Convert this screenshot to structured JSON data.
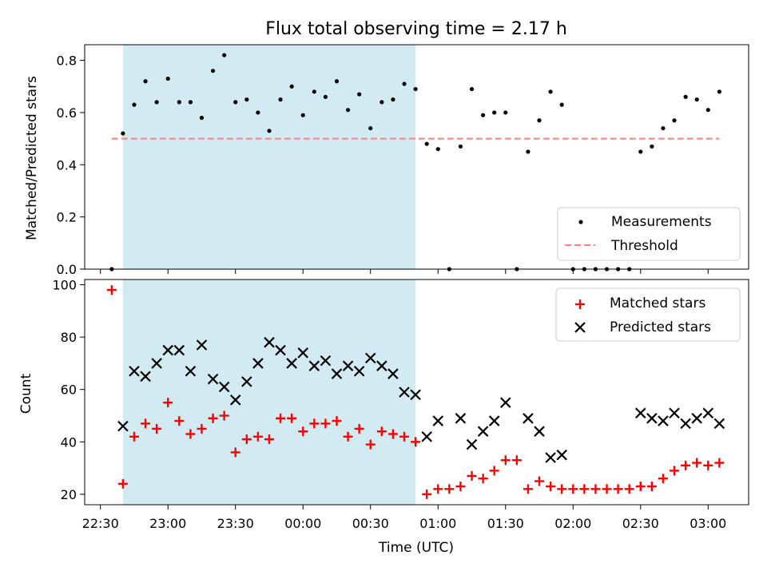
{
  "chart_data": [
    {
      "type": "scatter",
      "title": "Flux total observing time = 2.17 h",
      "xlabel": "",
      "ylabel": "Matched/Predicted stars",
      "ylim": [
        0,
        0.86
      ],
      "yticks": [
        "0.0",
        "0.2",
        "0.4",
        "0.6",
        "0.8"
      ],
      "ytick_values": [
        0,
        0.2,
        0.4,
        0.6,
        0.8
      ],
      "legend_position": "lower-right",
      "shaded_interval": [
        "22:40",
        "00:50"
      ],
      "series": [
        {
          "name": "Measurements",
          "color": "#000000",
          "marker": "dot",
          "x": [
            "22:35",
            "22:40",
            "22:45",
            "22:50",
            "22:55",
            "23:00",
            "23:05",
            "23:10",
            "23:15",
            "23:20",
            "23:25",
            "23:30",
            "23:35",
            "23:40",
            "23:45",
            "23:50",
            "23:55",
            "00:00",
            "00:05",
            "00:10",
            "00:15",
            "00:20",
            "00:25",
            "00:30",
            "00:35",
            "00:40",
            "00:45",
            "00:50",
            "00:55",
            "01:00",
            "01:05",
            "01:10",
            "01:15",
            "01:20",
            "01:25",
            "01:30",
            "01:35",
            "01:40",
            "01:45",
            "01:50",
            "01:55",
            "02:00",
            "02:05",
            "02:10",
            "02:15",
            "02:20",
            "02:25",
            "02:30",
            "02:35",
            "02:40",
            "02:45",
            "02:50",
            "02:55",
            "03:00",
            "03:05"
          ],
          "y": [
            0.0,
            0.52,
            0.63,
            0.72,
            0.64,
            0.73,
            0.64,
            0.64,
            0.58,
            0.76,
            0.82,
            0.64,
            0.65,
            0.6,
            0.53,
            0.65,
            0.7,
            0.59,
            0.68,
            0.66,
            0.72,
            0.61,
            0.67,
            0.54,
            0.64,
            0.65,
            0.71,
            0.69,
            0.48,
            0.46,
            0.0,
            0.47,
            0.69,
            0.59,
            0.6,
            0.6,
            0.0,
            0.45,
            0.57,
            0.68,
            0.63,
            0.0,
            0.0,
            0.0,
            0.0,
            0.0,
            0.0,
            0.45,
            0.47,
            0.54,
            0.57,
            0.66,
            0.65,
            0.61,
            0.68
          ]
        },
        {
          "name": "Threshold",
          "color": "#ff7f7f",
          "style": "dashed",
          "x": [
            "22:35",
            "03:05"
          ],
          "y": [
            0.5,
            0.5
          ]
        }
      ]
    },
    {
      "type": "scatter",
      "title": "",
      "xlabel": "Time (UTC)",
      "ylabel": "Count",
      "ylim": [
        16,
        102
      ],
      "yticks": [
        "20",
        "40",
        "60",
        "80",
        "100"
      ],
      "ytick_values": [
        20,
        40,
        60,
        80,
        100
      ],
      "xlim": [
        "22:23",
        "03:18"
      ],
      "xticks": [
        "22:30",
        "23:00",
        "23:30",
        "00:00",
        "00:30",
        "01:00",
        "01:30",
        "02:00",
        "02:30",
        "03:00"
      ],
      "legend_position": "upper-right",
      "shaded_interval": [
        "22:40",
        "00:50"
      ],
      "series": [
        {
          "name": "Matched stars",
          "color": "#ff0000",
          "marker": "plus",
          "x": [
            "22:35",
            "22:40",
            "22:45",
            "22:50",
            "22:55",
            "23:00",
            "23:05",
            "23:10",
            "23:15",
            "23:20",
            "23:25",
            "23:30",
            "23:35",
            "23:40",
            "23:45",
            "23:50",
            "23:55",
            "00:00",
            "00:05",
            "00:10",
            "00:15",
            "00:20",
            "00:25",
            "00:30",
            "00:35",
            "00:40",
            "00:45",
            "00:50",
            "00:55",
            "01:00",
            "01:05",
            "01:10",
            "01:15",
            "01:20",
            "01:25",
            "01:30",
            "01:35",
            "01:40",
            "01:45",
            "01:50",
            "01:55",
            "02:00",
            "02:05",
            "02:10",
            "02:15",
            "02:20",
            "02:25",
            "02:30",
            "02:35",
            "02:40",
            "02:45",
            "02:50",
            "02:55",
            "03:00",
            "03:05"
          ],
          "y": [
            98,
            24,
            42,
            47,
            45,
            55,
            48,
            43,
            45,
            49,
            50,
            36,
            41,
            42,
            41,
            49,
            49,
            44,
            47,
            47,
            48,
            42,
            45,
            39,
            44,
            43,
            42,
            40,
            20,
            22,
            22,
            23,
            27,
            26,
            29,
            33,
            33,
            22,
            25,
            23,
            22,
            22,
            22,
            22,
            22,
            22,
            22,
            23,
            23,
            26,
            29,
            31,
            32,
            31,
            32
          ]
        },
        {
          "name": "Predicted stars",
          "color": "#000000",
          "marker": "x",
          "x": [
            "22:40",
            "22:45",
            "22:50",
            "22:55",
            "23:00",
            "23:05",
            "23:10",
            "23:15",
            "23:20",
            "23:25",
            "23:30",
            "23:35",
            "23:40",
            "23:45",
            "23:50",
            "23:55",
            "00:00",
            "00:05",
            "00:10",
            "00:15",
            "00:20",
            "00:25",
            "00:30",
            "00:35",
            "00:40",
            "00:45",
            "00:50",
            "00:55",
            "01:00",
            "01:10",
            "01:15",
            "01:20",
            "01:25",
            "01:30",
            "01:40",
            "01:45",
            "01:50",
            "01:55",
            "02:30",
            "02:35",
            "02:40",
            "02:45",
            "02:50",
            "02:55",
            "03:00",
            "03:05"
          ],
          "y": [
            46,
            67,
            65,
            70,
            75,
            75,
            67,
            77,
            64,
            61,
            56,
            63,
            70,
            78,
            75,
            70,
            74,
            69,
            71,
            66,
            69,
            67,
            72,
            69,
            66,
            59,
            58,
            42,
            48,
            49,
            39,
            44,
            48,
            55,
            49,
            44,
            34,
            35,
            51,
            49,
            48,
            51,
            47,
            49,
            51,
            47
          ]
        }
      ]
    }
  ]
}
